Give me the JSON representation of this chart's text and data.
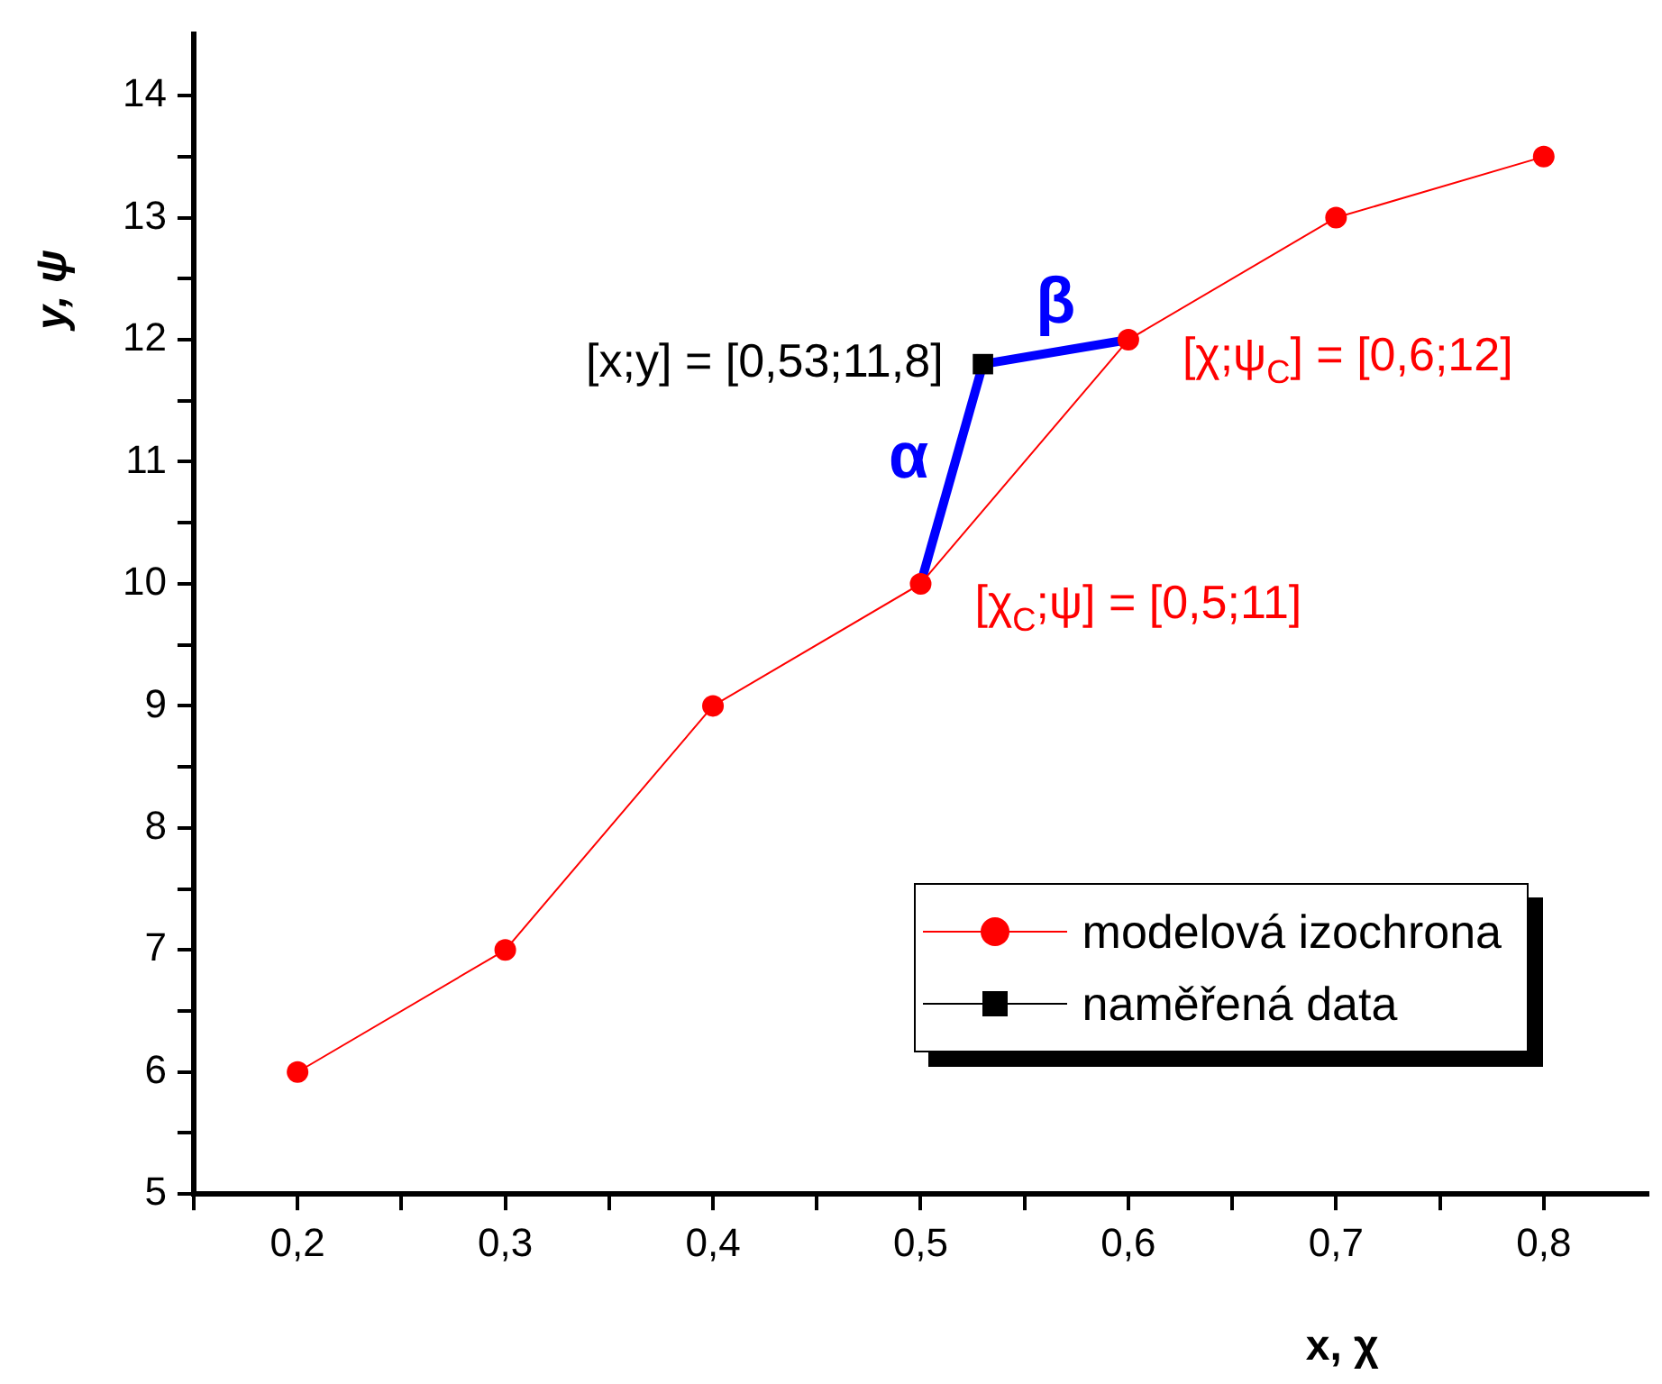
{
  "chart_data": {
    "type": "line",
    "xlabel": "x, χ",
    "ylabel": "y, ψ",
    "xlim": [
      0.15,
      0.85
    ],
    "ylim": [
      5,
      14.5
    ],
    "xticks": [
      {
        "value": 0.15,
        "label": null
      },
      {
        "value": 0.2,
        "label": "0,2"
      },
      {
        "value": 0.25,
        "label": null
      },
      {
        "value": 0.3,
        "label": "0,3"
      },
      {
        "value": 0.35,
        "label": null
      },
      {
        "value": 0.4,
        "label": "0,4"
      },
      {
        "value": 0.45,
        "label": null
      },
      {
        "value": 0.5,
        "label": "0,5"
      },
      {
        "value": 0.55,
        "label": null
      },
      {
        "value": 0.6,
        "label": "0,6"
      },
      {
        "value": 0.65,
        "label": null
      },
      {
        "value": 0.7,
        "label": "0,7"
      },
      {
        "value": 0.75,
        "label": null
      },
      {
        "value": 0.8,
        "label": "0,8"
      }
    ],
    "yticks": [
      5,
      {
        "value": 5.5,
        "label": null
      },
      6,
      {
        "value": 6.5,
        "label": null
      },
      7,
      {
        "value": 7.5,
        "label": null
      },
      8,
      {
        "value": 8.5,
        "label": null
      },
      9,
      {
        "value": 9.5,
        "label": null
      },
      10,
      {
        "value": 10.5,
        "label": null
      },
      11,
      {
        "value": 11.5,
        "label": null
      },
      12,
      {
        "value": 12.5,
        "label": null
      },
      13,
      {
        "value": 13.5,
        "label": null
      },
      14
    ],
    "legend": "bottom right",
    "series": [
      {
        "name": "modelová izochrona",
        "marker": "circle",
        "color": "#ff0000",
        "x": [
          0.2,
          0.3,
          0.4,
          0.5,
          0.6,
          0.7,
          0.8
        ],
        "values": [
          6,
          7,
          9,
          10,
          12,
          13,
          13.5
        ]
      },
      {
        "name": "naměřená data",
        "type": "scatter",
        "marker": "square",
        "color": "#000000",
        "x": [
          0.53
        ],
        "values": [
          11.8
        ]
      },
      {
        "name": "α",
        "marker": "none",
        "color": "#0000ff",
        "x": [
          0.5,
          0.53
        ],
        "values": [
          10,
          11.8
        ]
      },
      {
        "name": "β",
        "marker": "none",
        "color": "#0000ff",
        "x": [
          0.53,
          0.6
        ],
        "values": [
          11.8,
          12
        ]
      }
    ],
    "annotations": [
      {
        "text": "[x;y] = [0,53;11,8]",
        "x": 0.53,
        "y": 11.8
      },
      {
        "text": "[χ;ψ$_{C}$] = [0,6;12]",
        "x": 0.6,
        "y": 12
      },
      {
        "text": "[χ$_{C}$;ψ] = [0,5;11]",
        "x": 0.5,
        "y": 10
      }
    ]
  }
}
